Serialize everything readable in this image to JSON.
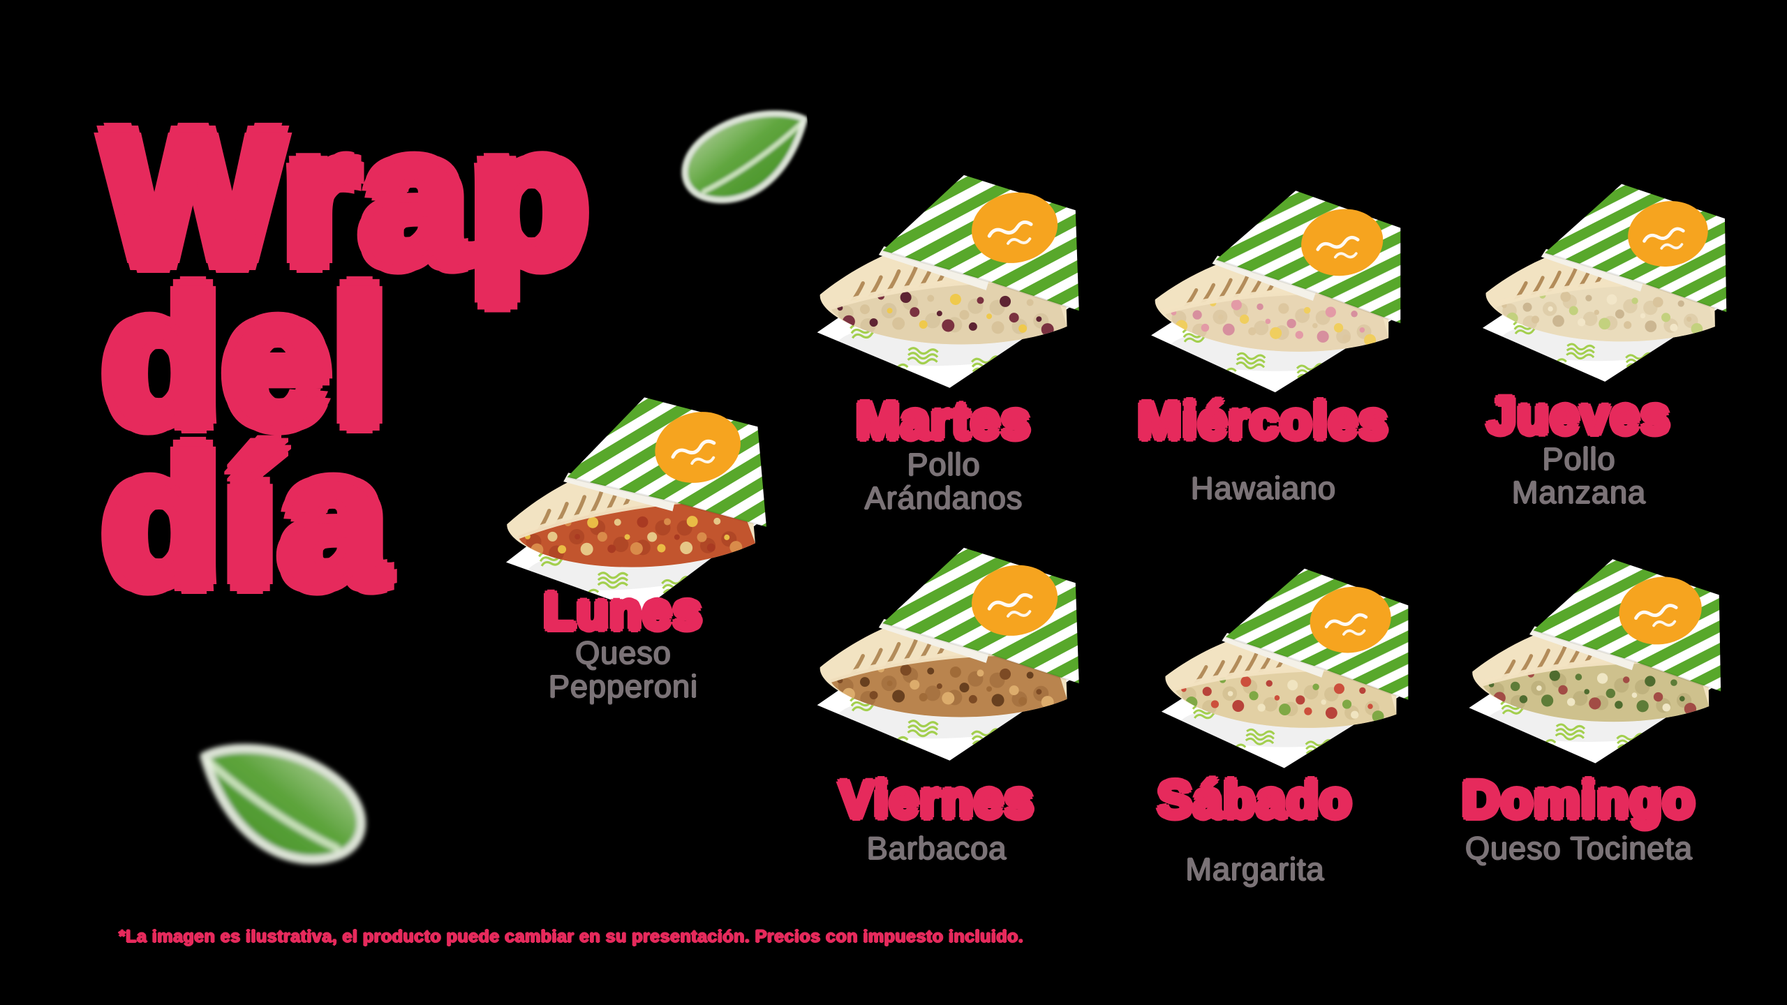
{
  "title": {
    "text": "Wrap del día",
    "lines": [
      "Wrap",
      "del",
      "día"
    ]
  },
  "colors": {
    "background": "#000000",
    "accent_pink": "#E62A5C",
    "item_gray": "#7B7377",
    "stripe_green": "#58A82B",
    "squiggle_green": "#9BCB3C",
    "logo_orange": "#F6A41F",
    "paper_white": "#FFFFFF",
    "tortilla_cream": "#F2E3C2",
    "tortilla_edge": "#E2CDA0",
    "grill_brown": "#A87C48",
    "leaf_green": "#5BA33A"
  },
  "menu": {
    "days": [
      {
        "id": "lunes",
        "day": "Lunes",
        "item_lines": [
          "Queso",
          "Pepperoni"
        ],
        "fill": {
          "base": "#C2552E",
          "darker": "#94331B",
          "accents": [
            "#E9BC45",
            "#D98B4A",
            "#A93A22",
            "#E6C787"
          ]
        }
      },
      {
        "id": "martes",
        "day": "Martes",
        "item_lines": [
          "Pollo",
          "Arándanos"
        ],
        "fill": {
          "base": "#E3D2AE",
          "darker": "#C9B488",
          "accents": [
            "#5E2433",
            "#7A3140",
            "#EFC94C",
            "#D8C39A"
          ]
        }
      },
      {
        "id": "miercoles",
        "day": "Miércoles",
        "item_lines": [
          "Hawaiano"
        ],
        "fill": {
          "base": "#E8D6B4",
          "darker": "#CBB68C",
          "accents": [
            "#E39AA6",
            "#F0CE5E",
            "#DDC79F",
            "#D78F9E"
          ]
        }
      },
      {
        "id": "jueves",
        "day": "Jueves",
        "item_lines": [
          "Pollo",
          "Manzana"
        ],
        "fill": {
          "base": "#EADCBC",
          "darker": "#CDB88E",
          "accents": [
            "#D9C49C",
            "#C3D17E",
            "#F2E6C8",
            "#CBB691"
          ]
        }
      },
      {
        "id": "viernes",
        "day": "Viernes",
        "item_lines": [
          "Barbacoa"
        ],
        "fill": {
          "base": "#B9844E",
          "darker": "#8C5A2D",
          "accents": [
            "#7C4A24",
            "#DCAC6C",
            "#A06B38",
            "#68401F"
          ]
        }
      },
      {
        "id": "sabado",
        "day": "Sábado",
        "item_lines": [
          "Margarita"
        ],
        "fill": {
          "base": "#E2D0A4",
          "darker": "#C3AD7E",
          "accents": [
            "#CC4F3C",
            "#7FA845",
            "#F0E4C0",
            "#B8433A"
          ]
        }
      },
      {
        "id": "domingo",
        "day": "Domingo",
        "item_lines": [
          "Queso Tocineta"
        ],
        "fill": {
          "base": "#CEC18D",
          "darker": "#A89A66",
          "accents": [
            "#4F6C2F",
            "#A24C45",
            "#EFE6C4",
            "#5E7C38"
          ]
        }
      }
    ]
  },
  "disclaimer": "*La imagen es ilustrativa, el producto puede cambiar en su presentación. Precios con impuesto incluido."
}
